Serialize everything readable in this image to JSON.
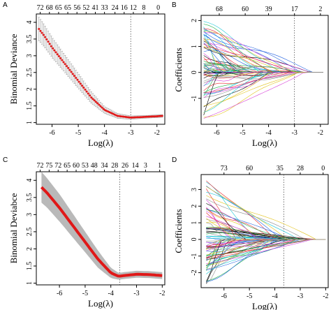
{
  "figure": {
    "panel_letters": {
      "A": "A",
      "B": "B",
      "C": "C",
      "D": "D"
    }
  },
  "chart_data": [
    {
      "id": "A",
      "type": "line",
      "xlabel": "Log(λ)",
      "ylabel": "Binomial Deviance",
      "xlim": [
        -6.6,
        -1.7
      ],
      "ylim": [
        0.95,
        4.25
      ],
      "x_ticks": [
        -6,
        -5,
        -4,
        -3,
        -2
      ],
      "y_ticks": [
        1.0,
        1.5,
        2.0,
        2.5,
        3.0,
        3.5,
        4.0
      ],
      "top_tick_labels": [
        "72",
        "68",
        "65",
        "65",
        "56",
        "52",
        "41",
        "33",
        "24",
        "16",
        "12",
        "8",
        "0"
      ],
      "top_tick_x": [
        -6.45,
        -6.1,
        -5.75,
        -5.4,
        -5.05,
        -4.7,
        -4.35,
        -4.0,
        -3.6,
        -3.25,
        -2.9,
        -2.5,
        -1.95
      ],
      "vlines": [
        -3.0
      ],
      "error_bars": true,
      "series": [
        {
          "color": "#e01818",
          "x": [
            -6.5,
            -6.3,
            -6.0,
            -5.5,
            -5.0,
            -4.5,
            -4.0,
            -3.5,
            -3.0,
            -2.5,
            -2.0,
            -1.8
          ],
          "y": [
            3.8,
            3.6,
            3.25,
            2.75,
            2.25,
            1.75,
            1.38,
            1.2,
            1.15,
            1.17,
            1.19,
            1.2
          ],
          "err": [
            0.35,
            0.33,
            0.3,
            0.26,
            0.22,
            0.17,
            0.1,
            0.07,
            0.05,
            0.04,
            0.04,
            0.04
          ]
        }
      ]
    },
    {
      "id": "B",
      "type": "line",
      "xlabel": "Log(λ)",
      "ylabel": "Coefficients",
      "xlim": [
        -6.6,
        -1.7
      ],
      "ylim": [
        -2.0,
        2.2
      ],
      "x_ticks": [
        -6,
        -5,
        -4,
        -3,
        -2
      ],
      "y_ticks": [
        -1,
        0,
        1,
        2
      ],
      "top_tick_labels": [
        "68",
        "60",
        "39",
        "17",
        "2"
      ],
      "top_tick_x": [
        -5.9,
        -4.9,
        -4.0,
        -3.0,
        -2.0
      ],
      "vlines": [
        -3.0
      ],
      "series_count": 72,
      "x_start": -6.5,
      "x_end": -1.9,
      "coef_range": [
        -1.8,
        2.0
      ]
    },
    {
      "id": "C",
      "type": "area",
      "xlabel": "Log(λ)",
      "ylabel": "Binomial Deviabce",
      "xlim": [
        -6.9,
        -1.9
      ],
      "ylim": [
        0.95,
        4.25
      ],
      "x_ticks": [
        -6,
        -5,
        -4,
        -3,
        -2
      ],
      "y_ticks": [
        1.0,
        1.5,
        2.0,
        2.5,
        3.0,
        3.5,
        4.0
      ],
      "top_tick_labels": [
        "72",
        "75",
        "72",
        "65",
        "60",
        "53",
        "48",
        "34",
        "28",
        "26",
        "14",
        "3",
        "1"
      ],
      "top_tick_x": [
        -6.75,
        -6.4,
        -6.05,
        -5.7,
        -5.35,
        -5.0,
        -4.65,
        -4.25,
        -3.85,
        -3.45,
        -3.05,
        -2.65,
        -2.1
      ],
      "vlines": [
        -3.65
      ],
      "series": [
        {
          "color": "#e01818",
          "x": [
            -6.7,
            -6.5,
            -6.0,
            -5.5,
            -5.0,
            -4.5,
            -4.0,
            -3.7,
            -3.5,
            -3.0,
            -2.5,
            -2.0
          ],
          "y": [
            3.8,
            3.65,
            3.2,
            2.7,
            2.2,
            1.7,
            1.3,
            1.2,
            1.22,
            1.26,
            1.25,
            1.22
          ],
          "err": [
            0.45,
            0.43,
            0.4,
            0.35,
            0.3,
            0.25,
            0.15,
            0.1,
            0.1,
            0.1,
            0.1,
            0.1
          ]
        }
      ]
    },
    {
      "id": "D",
      "type": "line",
      "xlabel": "Log(λ)",
      "ylabel": "Coefficients",
      "xlim": [
        -6.9,
        -1.9
      ],
      "ylim": [
        -2.9,
        3.9
      ],
      "x_ticks": [
        -6,
        -5,
        -4,
        -3,
        -2
      ],
      "y_ticks": [
        -2,
        -1,
        0,
        1,
        2,
        3
      ],
      "top_tick_labels": [
        "73",
        "60",
        "35",
        "28",
        "0"
      ],
      "top_tick_x": [
        -6.0,
        -5.0,
        -3.8,
        -3.0,
        -2.1
      ],
      "vlines": [
        -3.65
      ],
      "series_count": 80,
      "x_start": -6.7,
      "x_end": -2.0,
      "coef_range": [
        -2.7,
        3.7
      ]
    }
  ],
  "colors": {
    "cv_line": "#e01818",
    "err_band": "#b9b9b9",
    "palette": [
      "#000000",
      "#e8252a",
      "#1fb24a",
      "#2060e0",
      "#1ac7d8",
      "#d63ed6",
      "#e2c21a",
      "#8c8c8c"
    ]
  }
}
